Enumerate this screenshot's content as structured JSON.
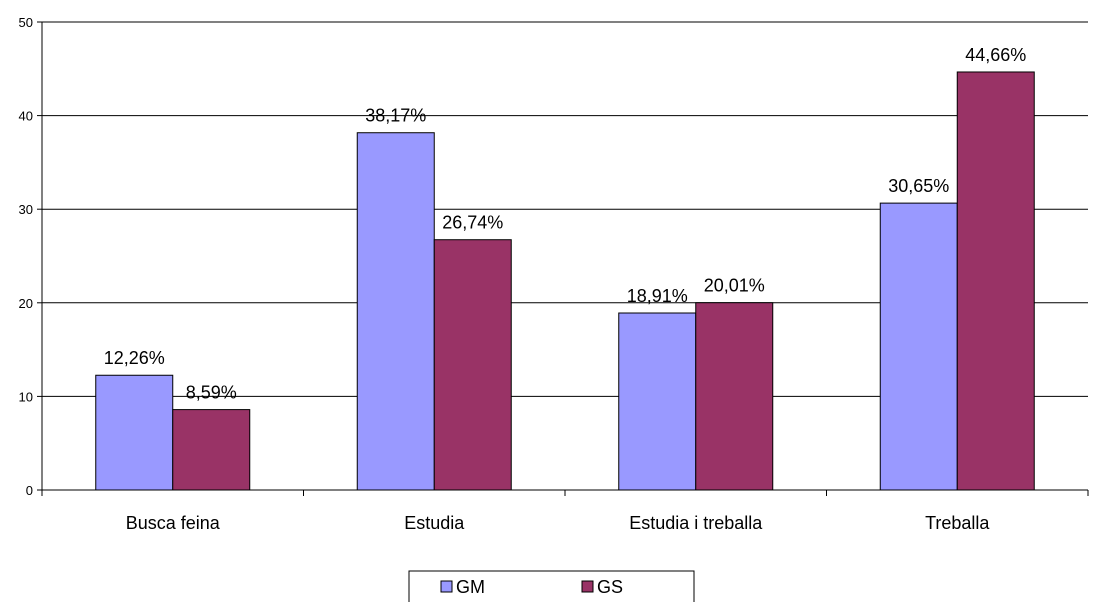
{
  "chart_data": {
    "type": "bar",
    "categories": [
      "Busca feina",
      "Estudia",
      "Estudia i treballa",
      "Treballa"
    ],
    "series": [
      {
        "name": "GM",
        "color": "#9999ff",
        "values": [
          12.26,
          38.17,
          18.91,
          30.65
        ],
        "labels": [
          "12,26%",
          "38,17%",
          "18,91%",
          "30,65%"
        ]
      },
      {
        "name": "GS",
        "color": "#993366",
        "values": [
          8.59,
          26.74,
          20.01,
          44.66
        ],
        "labels": [
          "8,59%",
          "26,74%",
          "20,01%",
          "44,66%"
        ]
      }
    ],
    "ylim": [
      0,
      50
    ],
    "yticks": [
      0,
      10,
      20,
      30,
      40,
      50
    ],
    "ytick_labels": [
      "0",
      "10",
      "20",
      "30",
      "40",
      "50"
    ],
    "grid": true,
    "legend": "bottom-center",
    "title": "",
    "xlabel": "",
    "ylabel": ""
  }
}
